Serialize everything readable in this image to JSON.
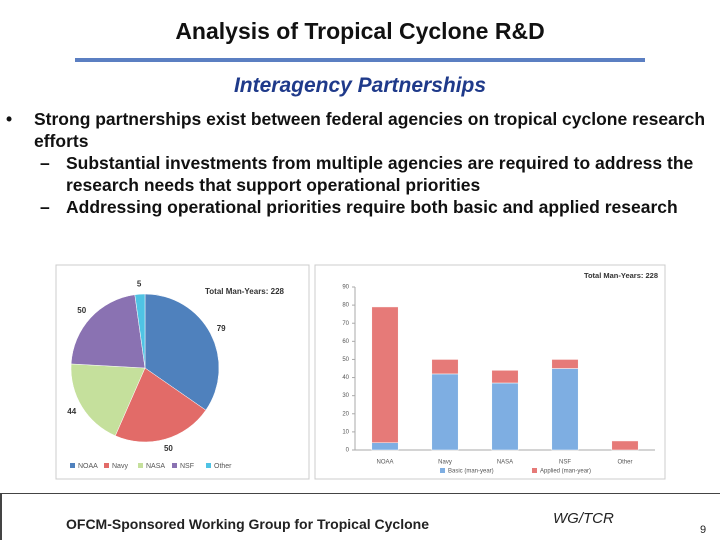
{
  "slide": {
    "title": "Analysis of Tropical Cyclone R&D",
    "subtitle": "Interagency Partnerships",
    "bullets": [
      {
        "text": "Strong partnerships exist between federal agencies on tropical cyclone research efforts",
        "sub": [
          "Substantial investments from multiple agencies are required to address the research needs that support operational priorities",
          "Addressing operational priorities require both basic and applied research"
        ]
      }
    ],
    "footer": {
      "text": "OFCM-Sponsored Working Group for Tropical Cyclone Research",
      "code": "WG/TCR",
      "page": "9"
    }
  },
  "chart_data": [
    {
      "type": "pie",
      "title": "Total Man-Years: 228",
      "categories": [
        "NOAA",
        "Navy",
        "NASA",
        "NSF",
        "Other"
      ],
      "values": [
        79,
        50,
        44,
        50,
        5
      ],
      "colors": [
        "#4f81bd",
        "#e26b68",
        "#c5e09c",
        "#8a72b2",
        "#4fc3e4"
      ],
      "legend": "bottom"
    },
    {
      "type": "bar",
      "stacked": true,
      "title": "Total Man-Years: 228",
      "categories": [
        "NOAA",
        "Navy",
        "NASA",
        "NSF",
        "Other"
      ],
      "series": [
        {
          "name": "Basic (man-year)",
          "color": "#7eaee2",
          "values": [
            4,
            42,
            37,
            45,
            0
          ]
        },
        {
          "name": "Applied (man-year)",
          "color": "#e67a78",
          "values": [
            75,
            8,
            7,
            5,
            5
          ]
        }
      ],
      "ylim": [
        0,
        90
      ],
      "yticks": [
        0,
        10,
        20,
        30,
        40,
        50,
        60,
        70,
        80,
        90
      ],
      "grid": false,
      "legend": "bottom"
    }
  ]
}
